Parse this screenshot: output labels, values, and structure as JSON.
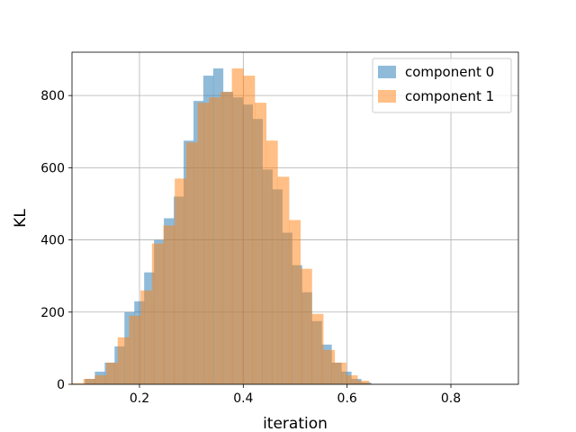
{
  "chart_data": {
    "type": "bar",
    "subtype": "overlaid-histogram",
    "xlabel": "iteration",
    "ylabel": "KL",
    "xlim": [
      0.07,
      0.93
    ],
    "ylim": [
      0,
      920
    ],
    "x_ticks": [
      0.2,
      0.4,
      0.6,
      0.8
    ],
    "x_tick_labels": [
      "0.2",
      "0.4",
      "0.6",
      "0.8"
    ],
    "y_ticks": [
      0,
      200,
      400,
      600,
      800
    ],
    "y_tick_labels": [
      "0",
      "200",
      "400",
      "600",
      "800"
    ],
    "grid": true,
    "legend_position": "top-right",
    "colors": {
      "component_0": "#1f77b4",
      "component_1": "#ff7f0e"
    },
    "bar_alpha": 0.5,
    "series": [
      {
        "name": "component 0",
        "bins": [
          [
            0.095,
            0.114,
            15
          ],
          [
            0.114,
            0.133,
            35
          ],
          [
            0.133,
            0.152,
            60
          ],
          [
            0.152,
            0.171,
            105
          ],
          [
            0.171,
            0.19,
            200
          ],
          [
            0.19,
            0.209,
            230
          ],
          [
            0.209,
            0.228,
            310
          ],
          [
            0.228,
            0.247,
            400
          ],
          [
            0.247,
            0.266,
            460
          ],
          [
            0.266,
            0.285,
            520
          ],
          [
            0.285,
            0.304,
            675
          ],
          [
            0.304,
            0.323,
            785
          ],
          [
            0.323,
            0.342,
            855
          ],
          [
            0.342,
            0.361,
            875
          ],
          [
            0.361,
            0.38,
            810
          ],
          [
            0.38,
            0.399,
            795
          ],
          [
            0.399,
            0.418,
            775
          ],
          [
            0.418,
            0.437,
            735
          ],
          [
            0.437,
            0.456,
            595
          ],
          [
            0.456,
            0.475,
            540
          ],
          [
            0.475,
            0.494,
            420
          ],
          [
            0.494,
            0.513,
            330
          ],
          [
            0.513,
            0.532,
            255
          ],
          [
            0.532,
            0.551,
            175
          ],
          [
            0.551,
            0.57,
            110
          ],
          [
            0.57,
            0.589,
            60
          ],
          [
            0.589,
            0.608,
            35
          ],
          [
            0.608,
            0.627,
            15
          ],
          [
            0.627,
            0.646,
            5
          ]
        ]
      },
      {
        "name": "component 1",
        "bins": [
          [
            0.07,
            0.092,
            3
          ],
          [
            0.092,
            0.114,
            15
          ],
          [
            0.114,
            0.136,
            25
          ],
          [
            0.136,
            0.158,
            60
          ],
          [
            0.158,
            0.18,
            130
          ],
          [
            0.18,
            0.202,
            190
          ],
          [
            0.202,
            0.224,
            260
          ],
          [
            0.224,
            0.246,
            390
          ],
          [
            0.246,
            0.268,
            440
          ],
          [
            0.268,
            0.29,
            570
          ],
          [
            0.29,
            0.312,
            670
          ],
          [
            0.312,
            0.334,
            780
          ],
          [
            0.334,
            0.356,
            795
          ],
          [
            0.356,
            0.378,
            810
          ],
          [
            0.378,
            0.4,
            875
          ],
          [
            0.4,
            0.422,
            855
          ],
          [
            0.422,
            0.444,
            780
          ],
          [
            0.444,
            0.466,
            675
          ],
          [
            0.466,
            0.488,
            575
          ],
          [
            0.488,
            0.51,
            455
          ],
          [
            0.51,
            0.532,
            320
          ],
          [
            0.532,
            0.554,
            195
          ],
          [
            0.554,
            0.576,
            95
          ],
          [
            0.576,
            0.598,
            60
          ],
          [
            0.598,
            0.62,
            25
          ],
          [
            0.62,
            0.642,
            10
          ]
        ]
      }
    ]
  }
}
